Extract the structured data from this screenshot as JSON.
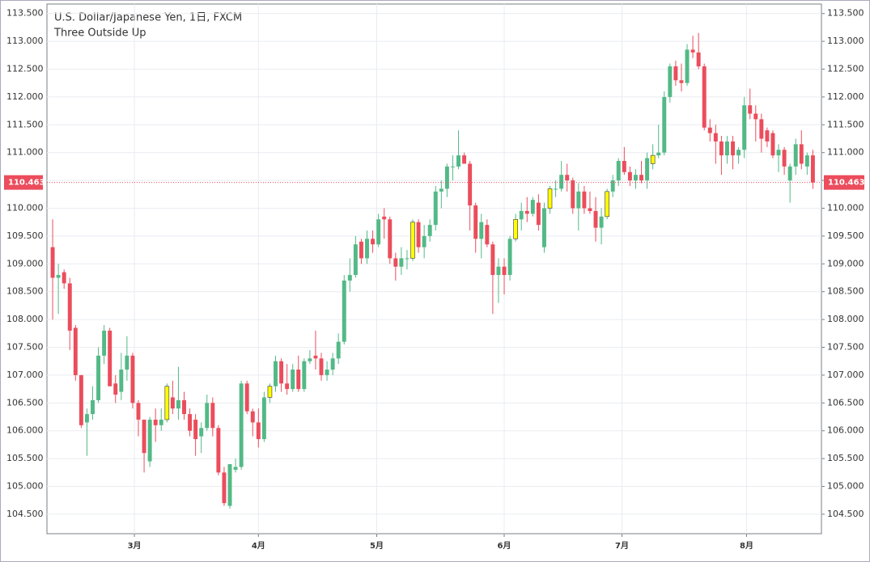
{
  "chart_data": {
    "type": "candlestick",
    "title": "U.S. Dollar/Japanese Yen, 1日, FXCM",
    "subtitle": "Three Outside Up",
    "open": [
      109.3,
      108.75,
      108.85,
      108.65,
      107.85,
      107.0,
      106.15,
      106.3,
      106.55,
      107.35,
      107.8,
      106.85,
      106.7,
      107.1,
      107.35,
      106.5,
      106.2,
      105.45,
      106.2,
      106.1,
      106.2,
      106.6,
      106.4,
      106.55,
      106.3,
      106.2,
      105.9,
      106.05,
      106.5,
      106.05,
      105.25,
      104.65,
      105.3,
      105.35,
      106.85,
      106.35,
      106.15,
      105.85,
      106.6,
      106.8,
      107.25,
      106.85,
      106.75,
      107.1,
      106.75,
      107.25,
      107.35,
      107.3,
      107.0,
      107.1,
      107.3,
      107.6,
      108.7,
      108.8,
      109.4,
      109.1,
      109.45,
      109.35,
      109.85,
      109.8,
      109.1,
      108.95,
      109.1,
      109.1,
      109.75,
      109.3,
      109.5,
      109.7,
      110.3,
      110.35,
      110.75,
      110.75,
      110.95,
      110.8,
      110.05,
      109.45,
      109.7,
      109.35,
      108.8,
      108.95,
      108.8,
      109.45,
      109.8,
      109.95,
      109.9,
      110.1,
      109.3,
      110.0,
      110.35,
      110.35,
      110.6,
      110.5,
      110.0,
      110.3,
      110.0,
      109.95,
      109.65,
      109.85,
      110.3,
      110.5,
      110.85,
      110.65,
      110.5,
      110.6,
      110.5,
      110.8,
      110.95,
      111.0,
      112.0,
      112.55,
      112.3,
      112.25,
      112.85,
      112.8,
      112.55,
      111.45,
      111.35,
      111.2,
      110.95,
      111.2,
      110.95,
      111.05,
      111.85,
      111.7,
      111.6,
      111.4,
      111.35,
      110.95,
      111.05,
      110.5,
      110.75,
      111.15,
      110.75,
      110.95
    ],
    "high": [
      109.8,
      109.0,
      108.9,
      108.75,
      107.9,
      107.0,
      106.4,
      106.8,
      107.5,
      107.9,
      107.85,
      107.0,
      107.4,
      107.7,
      107.4,
      106.55,
      106.2,
      106.25,
      106.4,
      106.4,
      106.85,
      106.9,
      107.15,
      106.7,
      106.4,
      106.3,
      106.15,
      106.65,
      106.6,
      106.1,
      105.35,
      105.4,
      105.5,
      106.9,
      106.9,
      106.4,
      106.4,
      106.7,
      106.85,
      107.35,
      107.3,
      107.2,
      107.2,
      107.35,
      107.3,
      107.45,
      107.8,
      107.4,
      107.25,
      107.4,
      107.75,
      108.8,
      109.1,
      109.5,
      109.45,
      109.6,
      109.6,
      109.9,
      110.0,
      109.85,
      109.2,
      109.3,
      109.25,
      109.8,
      109.8,
      109.7,
      109.8,
      110.4,
      110.5,
      110.8,
      110.95,
      111.4,
      111.0,
      110.85,
      110.1,
      109.9,
      109.8,
      109.4,
      109.1,
      109.1,
      109.5,
      109.9,
      110.1,
      110.2,
      110.2,
      110.25,
      110.1,
      110.4,
      110.5,
      110.85,
      110.8,
      110.55,
      110.45,
      110.4,
      110.3,
      110.2,
      110.0,
      110.35,
      110.6,
      110.9,
      111.1,
      110.75,
      110.7,
      110.85,
      111.0,
      111.15,
      111.5,
      112.1,
      112.6,
      112.65,
      112.6,
      112.95,
      113.1,
      113.15,
      112.6,
      111.6,
      111.5,
      111.3,
      111.3,
      111.3,
      111.1,
      112.0,
      112.15,
      111.85,
      111.7,
      111.45,
      111.4,
      111.15,
      111.1,
      110.8,
      111.25,
      111.4,
      111.0,
      111.05
    ],
    "low": [
      108.0,
      108.1,
      108.55,
      107.45,
      106.9,
      106.05,
      105.55,
      106.2,
      106.5,
      107.2,
      106.8,
      106.5,
      106.55,
      106.9,
      106.4,
      105.9,
      105.25,
      105.35,
      105.8,
      106.0,
      106.15,
      106.3,
      106.2,
      106.2,
      105.9,
      105.55,
      105.6,
      106.0,
      105.9,
      105.2,
      104.65,
      104.6,
      105.25,
      105.3,
      106.3,
      105.9,
      105.7,
      105.8,
      106.5,
      106.7,
      106.7,
      106.65,
      106.7,
      106.7,
      106.7,
      107.2,
      107.1,
      106.9,
      106.9,
      107.0,
      107.2,
      107.55,
      108.5,
      108.75,
      109.0,
      109.0,
      109.2,
      109.3,
      109.45,
      109.0,
      108.7,
      108.8,
      108.9,
      109.05,
      109.2,
      109.1,
      109.4,
      109.6,
      110.0,
      110.2,
      110.5,
      110.7,
      110.8,
      109.6,
      109.2,
      109.1,
      109.3,
      108.1,
      108.3,
      108.45,
      108.7,
      109.4,
      109.6,
      109.75,
      109.85,
      109.6,
      109.2,
      109.9,
      110.2,
      110.3,
      110.3,
      109.9,
      109.6,
      109.9,
      109.9,
      109.4,
      109.35,
      109.8,
      110.2,
      110.4,
      110.6,
      110.4,
      110.35,
      110.45,
      110.35,
      110.7,
      110.9,
      110.95,
      111.9,
      112.2,
      112.1,
      112.2,
      112.7,
      112.5,
      111.4,
      111.2,
      110.8,
      110.6,
      110.8,
      110.7,
      110.8,
      110.9,
      111.6,
      111.2,
      111.0,
      111.1,
      110.9,
      110.65,
      110.6,
      110.1,
      110.6,
      110.7,
      110.6,
      110.35
    ],
    "close": [
      108.75,
      108.8,
      108.65,
      107.8,
      107.0,
      106.1,
      106.3,
      106.55,
      107.35,
      107.8,
      106.8,
      106.65,
      107.1,
      107.35,
      106.5,
      106.2,
      105.6,
      106.2,
      106.1,
      106.2,
      106.8,
      106.4,
      106.55,
      106.3,
      106.0,
      105.85,
      106.05,
      106.5,
      106.05,
      105.25,
      104.7,
      105.4,
      105.35,
      106.85,
      106.35,
      106.15,
      105.85,
      106.6,
      106.8,
      107.25,
      106.85,
      106.75,
      107.1,
      106.75,
      107.25,
      107.3,
      107.3,
      107.0,
      107.1,
      107.3,
      107.6,
      108.7,
      108.8,
      109.35,
      109.1,
      109.45,
      109.35,
      109.8,
      109.8,
      109.1,
      108.95,
      109.1,
      109.1,
      109.75,
      109.3,
      109.5,
      109.7,
      110.3,
      110.35,
      110.75,
      110.75,
      110.95,
      110.8,
      110.05,
      109.45,
      109.75,
      109.35,
      108.8,
      108.95,
      108.8,
      109.45,
      109.8,
      109.95,
      109.9,
      110.15,
      109.7,
      110.0,
      110.35,
      110.35,
      110.6,
      110.5,
      110.0,
      110.3,
      110.0,
      109.95,
      109.65,
      109.85,
      110.3,
      110.5,
      110.85,
      110.65,
      110.5,
      110.6,
      110.5,
      110.9,
      110.95,
      111.0,
      112.0,
      112.55,
      112.3,
      112.25,
      112.85,
      112.8,
      112.55,
      111.45,
      111.35,
      111.2,
      110.95,
      111.2,
      110.95,
      111.05,
      111.85,
      111.7,
      111.6,
      111.25,
      111.2,
      110.95,
      111.05,
      110.75,
      110.75,
      111.15,
      110.8,
      110.95,
      110.463
    ],
    "up_color": "#53b987",
    "down_color": "#eb4d5c",
    "pattern_color": "#ffff00",
    "pattern_candles": [
      20,
      38,
      63,
      81,
      87,
      97,
      105
    ],
    "last_price": {
      "value": 110.463,
      "label": "110.463"
    },
    "xlim": [
      -1,
      134.5
    ],
    "xticks": [
      {
        "value": 14.3,
        "label": "3月"
      },
      {
        "value": 36,
        "label": "4月"
      },
      {
        "value": 56.7,
        "label": "5月"
      },
      {
        "value": 79,
        "label": "6月"
      },
      {
        "value": 99.6,
        "label": "7月"
      },
      {
        "value": 121.4,
        "label": "8月"
      }
    ],
    "ylim": [
      104.15,
      113.67
    ],
    "yticks": [
      {
        "value": 104.5,
        "label": "104.500"
      },
      {
        "value": 105,
        "label": "105.000"
      },
      {
        "value": 105.5,
        "label": "105.500"
      },
      {
        "value": 106,
        "label": "106.000"
      },
      {
        "value": 106.5,
        "label": "106.500"
      },
      {
        "value": 107,
        "label": "107.000"
      },
      {
        "value": 107.5,
        "label": "107.500"
      },
      {
        "value": 108,
        "label": "108.000"
      },
      {
        "value": 108.5,
        "label": "108.500"
      },
      {
        "value": 109,
        "label": "109.000"
      },
      {
        "value": 109.5,
        "label": "109.500"
      },
      {
        "value": 110,
        "label": "110.000"
      },
      {
        "value": 110.5,
        "label": "110.500"
      },
      {
        "value": 111,
        "label": "111.000"
      },
      {
        "value": 111.5,
        "label": "111.500"
      },
      {
        "value": 112,
        "label": "112.000"
      },
      {
        "value": 112.5,
        "label": "112.500"
      },
      {
        "value": 113,
        "label": "113.000"
      },
      {
        "value": 113.5,
        "label": "113.500"
      }
    ],
    "grid": true
  }
}
